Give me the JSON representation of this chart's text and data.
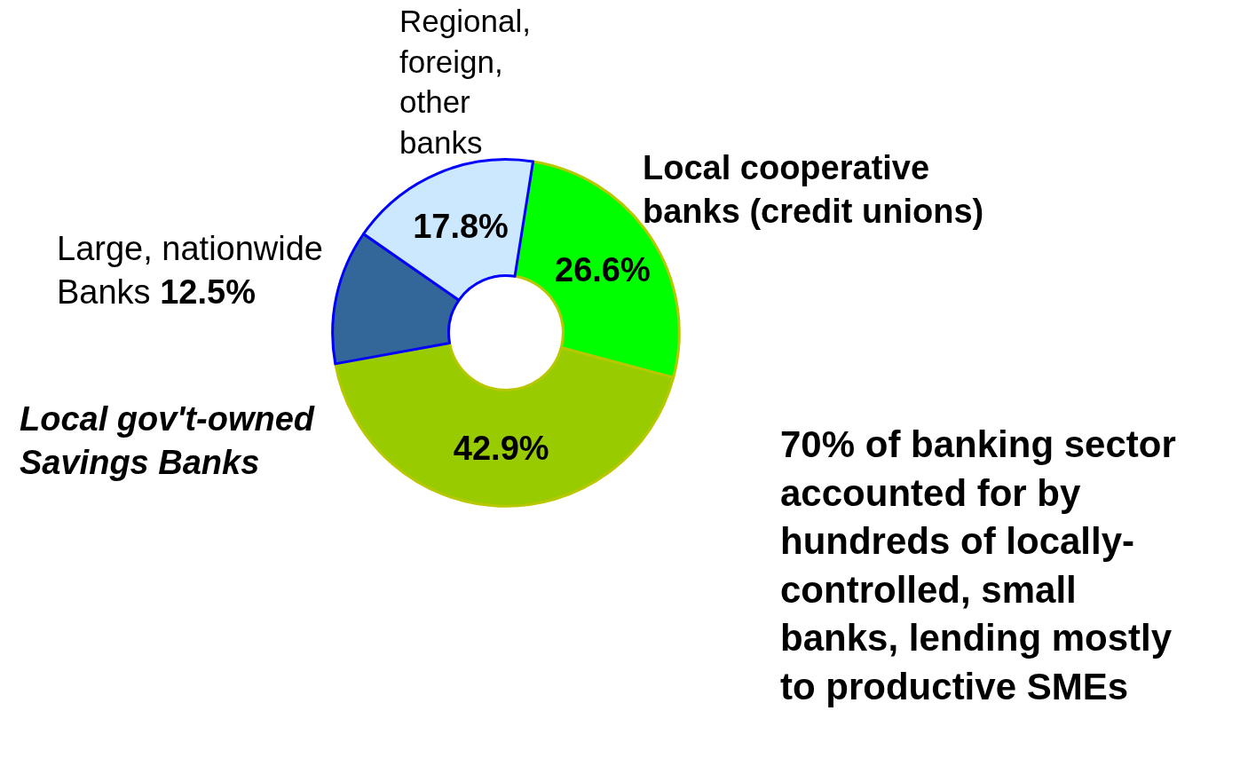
{
  "chart_data": {
    "type": "donut",
    "categories": [
      "Local cooperative banks (credit unions)",
      "Local gov't-owned Savings Banks",
      "Large, nationwide Banks",
      "Regional, foreign, other banks"
    ],
    "values": [
      26.6,
      42.9,
      12.5,
      17.8
    ],
    "value_labels": [
      "26.6%",
      "42.9%",
      "12.5%",
      "17.8%"
    ],
    "colors": [
      "#00ff00",
      "#99cc00",
      "#336699",
      "#cce8ff"
    ],
    "legend": false,
    "annotations": [
      "70% of banking sector accounted for by hundreds of locally-controlled, small banks, lending mostly to productive SMEs"
    ]
  }
}
